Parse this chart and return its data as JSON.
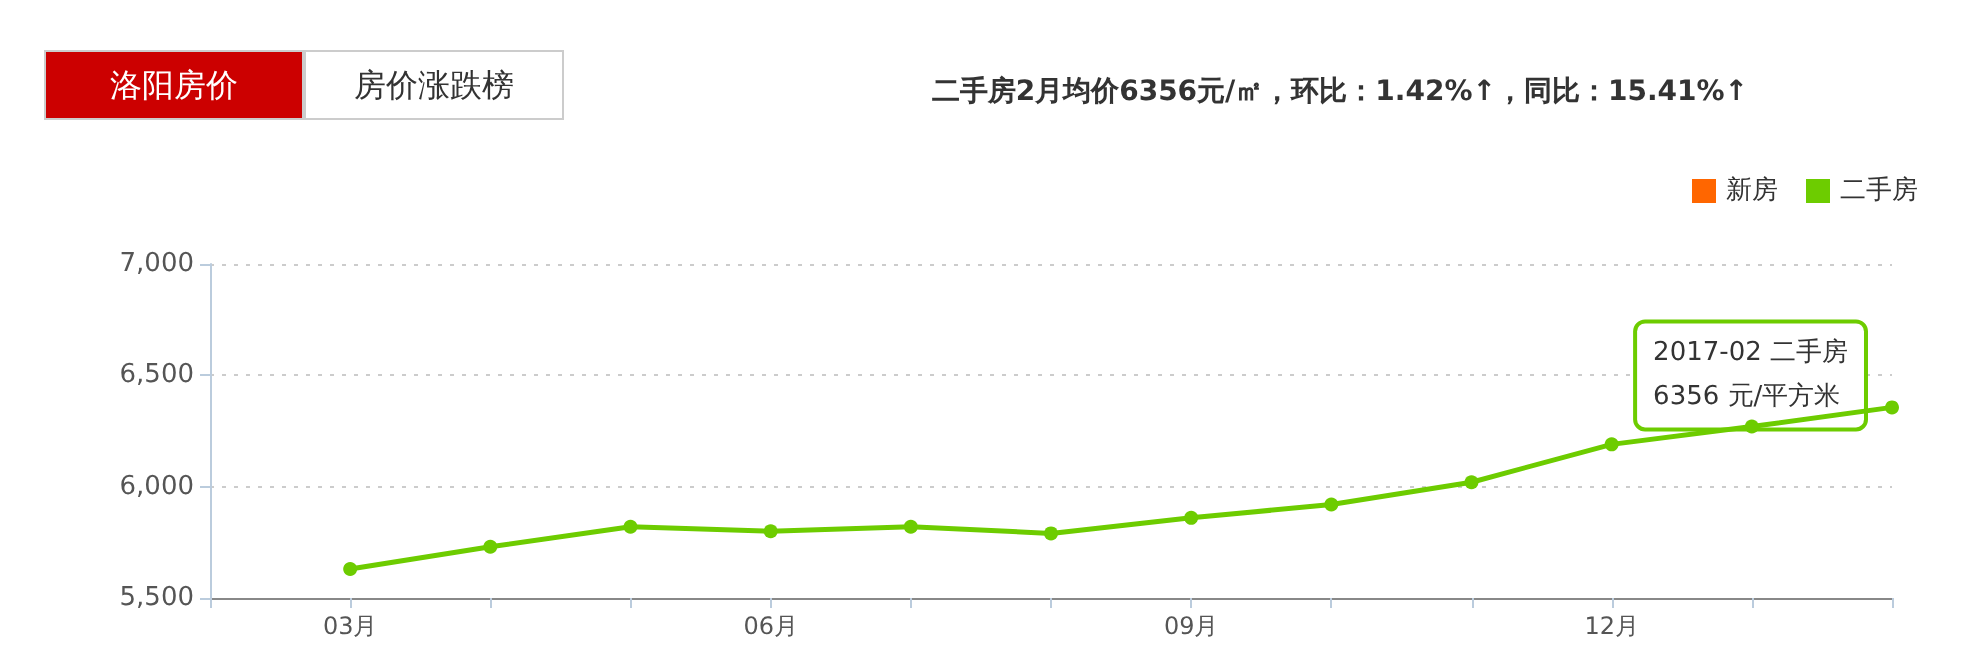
{
  "chart_data": {
    "type": "line",
    "title": "二手房2月均价6356元/㎡，环比：1.42%↑，同比：15.41%↑",
    "categories": [
      null,
      "03月",
      null,
      null,
      "06月",
      null,
      null,
      "09月",
      null,
      null,
      "12月",
      null,
      null
    ],
    "series": [
      {
        "name": "新房",
        "color": "#ff6600",
        "values": [
          null,
          null,
          null,
          null,
          null,
          null,
          null,
          null,
          null,
          null,
          null,
          null,
          null
        ]
      },
      {
        "name": "二手房",
        "color": "#6dcc00",
        "values": [
          null,
          5630,
          5730,
          5820,
          5800,
          5820,
          5790,
          5860,
          5920,
          6020,
          6190,
          6270,
          6356
        ]
      }
    ],
    "ylim": [
      5500,
      7000
    ],
    "yticks": [
      {
        "value": 5500,
        "label": "5,500"
      },
      {
        "value": 6000,
        "label": "6,000"
      },
      {
        "value": 6500,
        "label": "6,500"
      },
      {
        "value": 7000,
        "label": "7,000"
      }
    ],
    "grid": "y",
    "legend": "top right",
    "marker": "circle",
    "line_style": "solid",
    "annotations": [
      "洛阳房价",
      "房价涨跌榜",
      "2017-02 二手房\n6356 元/平方米"
    ]
  }
}
